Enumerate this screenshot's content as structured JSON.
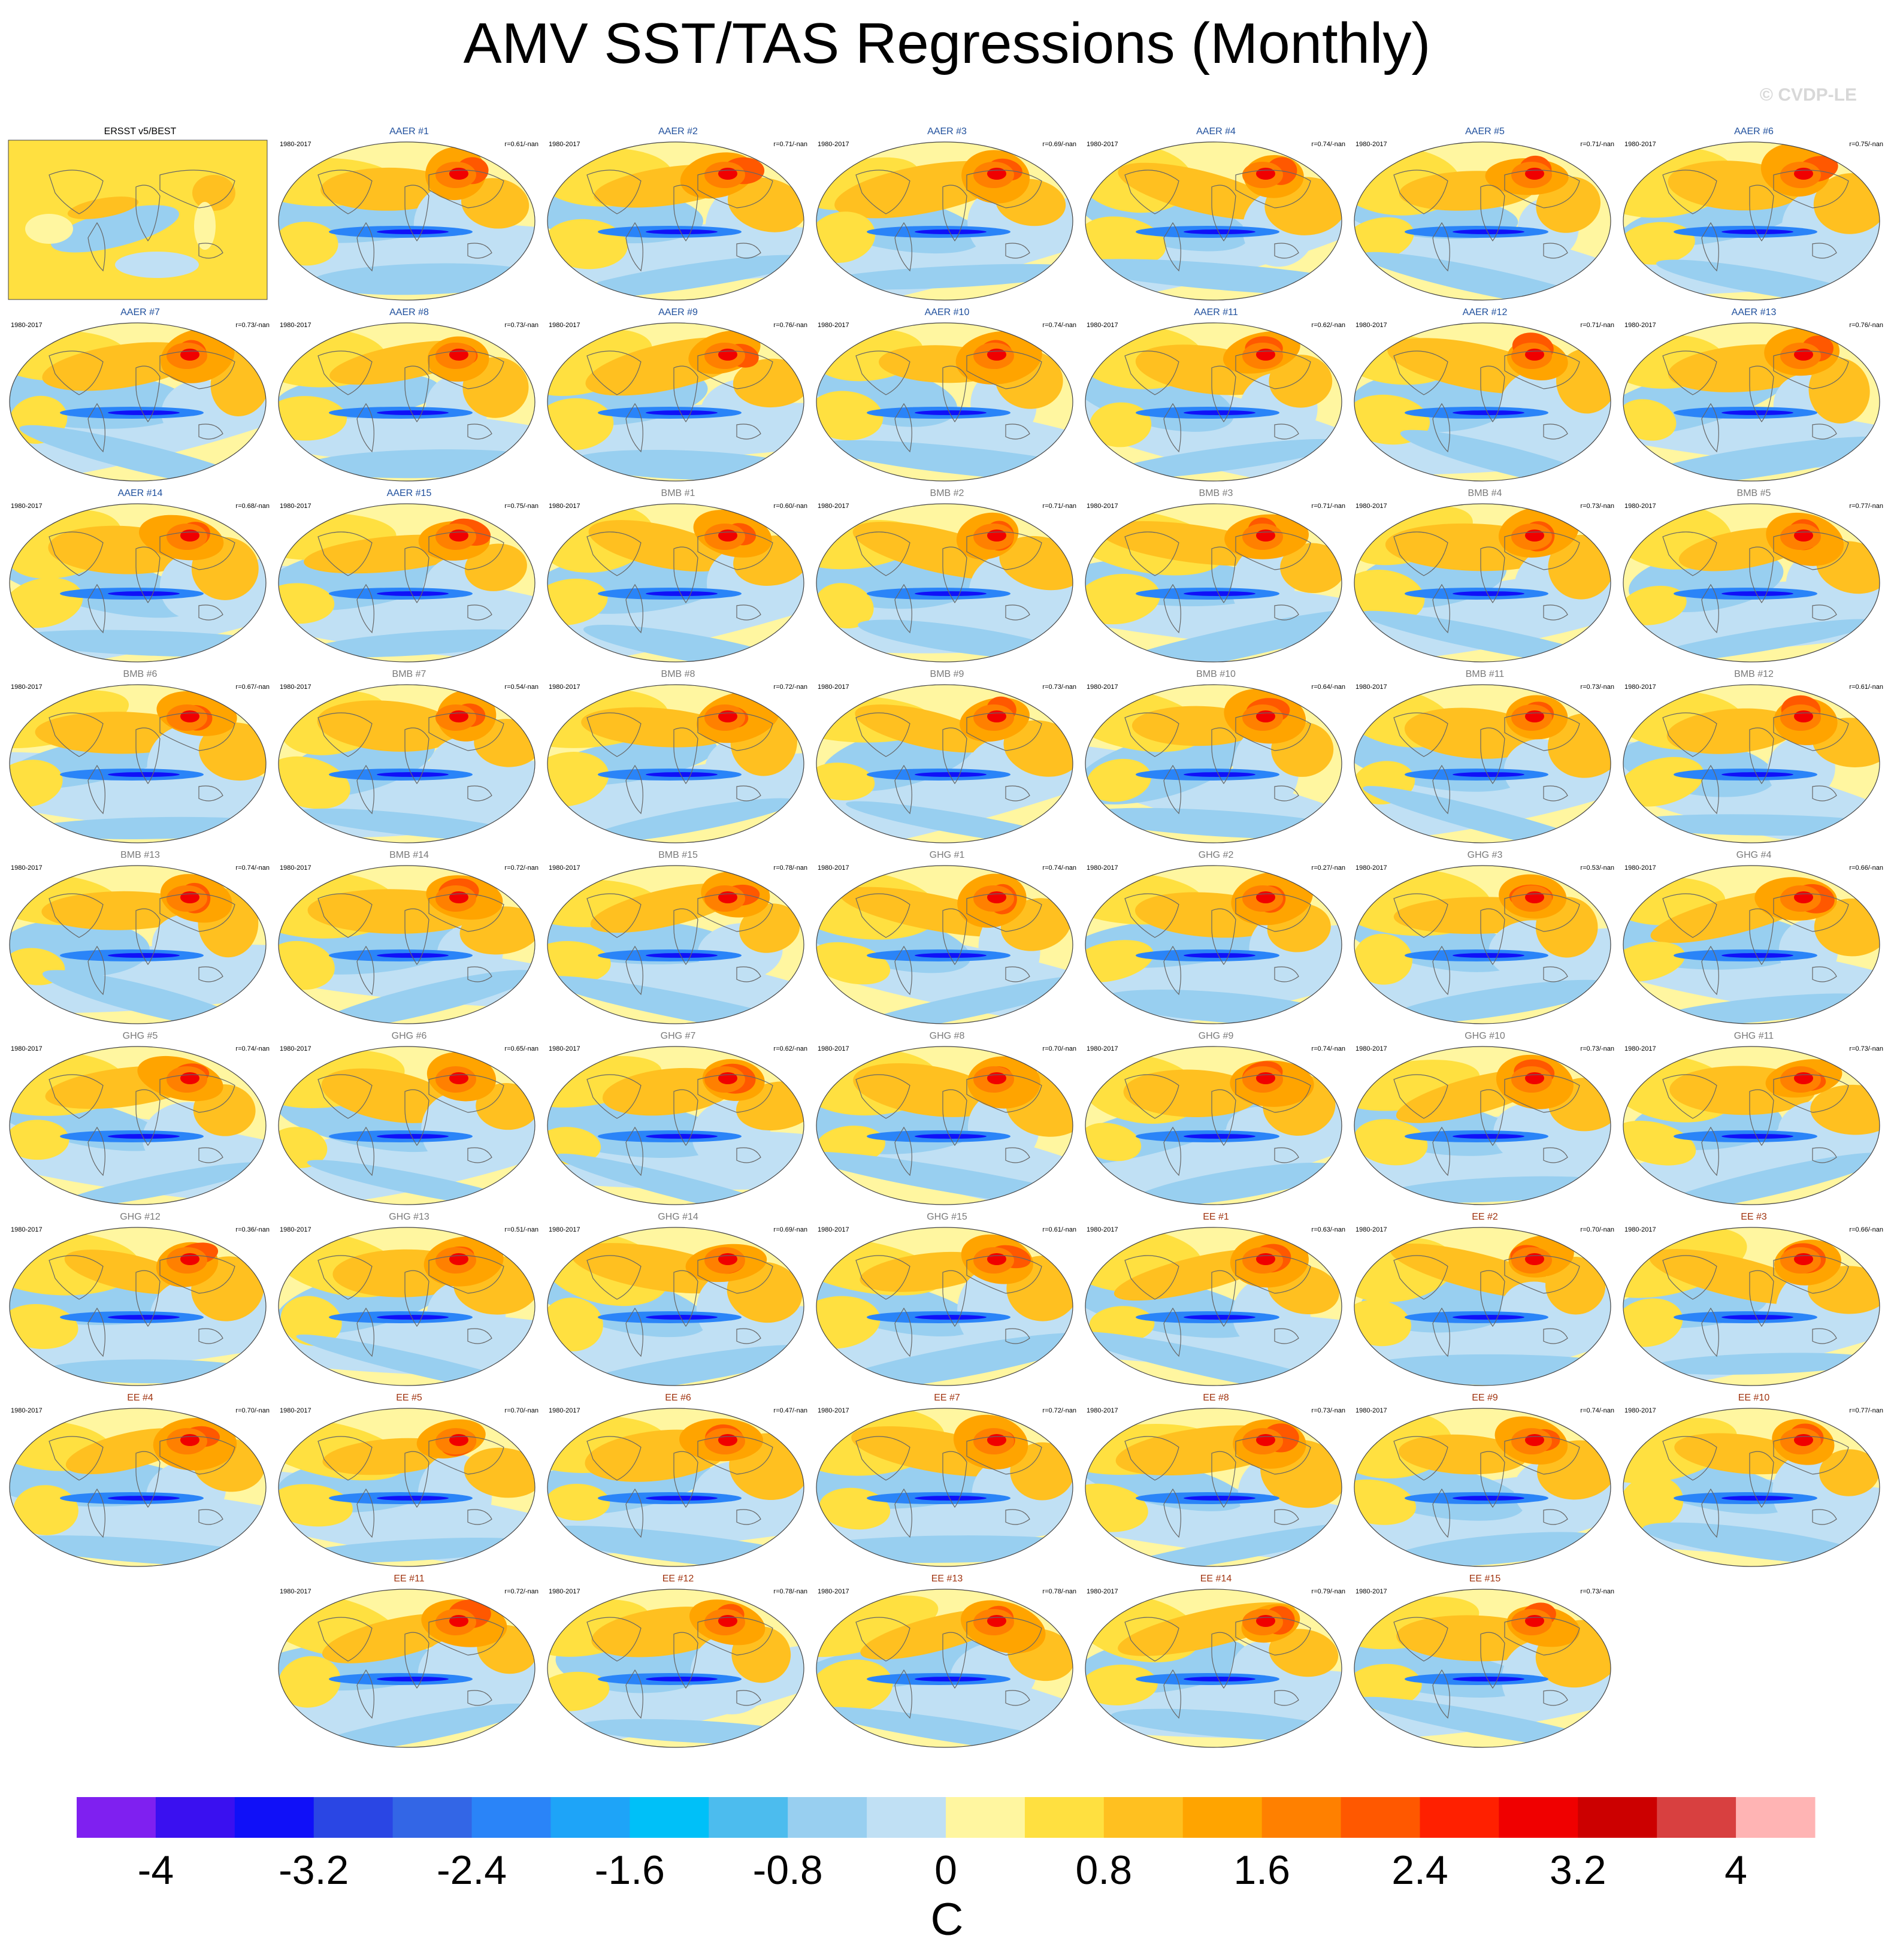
{
  "title": "AMV SST/TAS Regressions (Monthly)",
  "copyright": "© CVDP-LE",
  "panels": [
    {
      "title": "ERSST v5/BEST",
      "period": "1980-2017",
      "corr": "",
      "group": "OBS"
    },
    {
      "title": "AAER #1",
      "period": "1980-2017",
      "corr": "r=0.61/-nan",
      "group": "AAER"
    },
    {
      "title": "AAER #2",
      "period": "1980-2017",
      "corr": "r=0.71/-nan",
      "group": "AAER"
    },
    {
      "title": "AAER #3",
      "period": "1980-2017",
      "corr": "r=0.69/-nan",
      "group": "AAER"
    },
    {
      "title": "AAER #4",
      "period": "1980-2017",
      "corr": "r=0.74/-nan",
      "group": "AAER"
    },
    {
      "title": "AAER #5",
      "period": "1980-2017",
      "corr": "r=0.71/-nan",
      "group": "AAER"
    },
    {
      "title": "AAER #6",
      "period": "1980-2017",
      "corr": "r=0.75/-nan",
      "group": "AAER"
    },
    {
      "title": "AAER #7",
      "period": "1980-2017",
      "corr": "r=0.73/-nan",
      "group": "AAER"
    },
    {
      "title": "AAER #8",
      "period": "1980-2017",
      "corr": "r=0.73/-nan",
      "group": "AAER"
    },
    {
      "title": "AAER #9",
      "period": "1980-2017",
      "corr": "r=0.76/-nan",
      "group": "AAER"
    },
    {
      "title": "AAER #10",
      "period": "1980-2017",
      "corr": "r=0.74/-nan",
      "group": "AAER"
    },
    {
      "title": "AAER #11",
      "period": "1980-2017",
      "corr": "r=0.62/-nan",
      "group": "AAER"
    },
    {
      "title": "AAER #12",
      "period": "1980-2017",
      "corr": "r=0.71/-nan",
      "group": "AAER"
    },
    {
      "title": "AAER #13",
      "period": "1980-2017",
      "corr": "r=0.76/-nan",
      "group": "AAER"
    },
    {
      "title": "AAER #14",
      "period": "1980-2017",
      "corr": "r=0.68/-nan",
      "group": "AAER"
    },
    {
      "title": "AAER #15",
      "period": "1980-2017",
      "corr": "r=0.75/-nan",
      "group": "AAER"
    },
    {
      "title": "BMB #1",
      "period": "1980-2017",
      "corr": "r=0.60/-nan",
      "group": "BMB"
    },
    {
      "title": "BMB #2",
      "period": "1980-2017",
      "corr": "r=0.71/-nan",
      "group": "BMB"
    },
    {
      "title": "BMB #3",
      "period": "1980-2017",
      "corr": "r=0.71/-nan",
      "group": "BMB"
    },
    {
      "title": "BMB #4",
      "period": "1980-2017",
      "corr": "r=0.73/-nan",
      "group": "BMB"
    },
    {
      "title": "BMB #5",
      "period": "1980-2017",
      "corr": "r=0.77/-nan",
      "group": "BMB"
    },
    {
      "title": "BMB #6",
      "period": "1980-2017",
      "corr": "r=0.67/-nan",
      "group": "BMB"
    },
    {
      "title": "BMB #7",
      "period": "1980-2017",
      "corr": "r=0.54/-nan",
      "group": "BMB"
    },
    {
      "title": "BMB #8",
      "period": "1980-2017",
      "corr": "r=0.72/-nan",
      "group": "BMB"
    },
    {
      "title": "BMB #9",
      "period": "1980-2017",
      "corr": "r=0.73/-nan",
      "group": "BMB"
    },
    {
      "title": "BMB #10",
      "period": "1980-2017",
      "corr": "r=0.64/-nan",
      "group": "BMB"
    },
    {
      "title": "BMB #11",
      "period": "1980-2017",
      "corr": "r=0.73/-nan",
      "group": "BMB"
    },
    {
      "title": "BMB #12",
      "period": "1980-2017",
      "corr": "r=0.61/-nan",
      "group": "BMB"
    },
    {
      "title": "BMB #13",
      "period": "1980-2017",
      "corr": "r=0.74/-nan",
      "group": "BMB"
    },
    {
      "title": "BMB #14",
      "period": "1980-2017",
      "corr": "r=0.72/-nan",
      "group": "BMB"
    },
    {
      "title": "BMB #15",
      "period": "1980-2017",
      "corr": "r=0.78/-nan",
      "group": "BMB"
    },
    {
      "title": "GHG #1",
      "period": "1980-2017",
      "corr": "r=0.74/-nan",
      "group": "GHG"
    },
    {
      "title": "GHG #2",
      "period": "1980-2017",
      "corr": "r=0.27/-nan",
      "group": "GHG"
    },
    {
      "title": "GHG #3",
      "period": "1980-2017",
      "corr": "r=0.53/-nan",
      "group": "GHG"
    },
    {
      "title": "GHG #4",
      "period": "1980-2017",
      "corr": "r=0.66/-nan",
      "group": "GHG"
    },
    {
      "title": "GHG #5",
      "period": "1980-2017",
      "corr": "r=0.74/-nan",
      "group": "GHG"
    },
    {
      "title": "GHG #6",
      "period": "1980-2017",
      "corr": "r=0.65/-nan",
      "group": "GHG"
    },
    {
      "title": "GHG #7",
      "period": "1980-2017",
      "corr": "r=0.62/-nan",
      "group": "GHG"
    },
    {
      "title": "GHG #8",
      "period": "1980-2017",
      "corr": "r=0.70/-nan",
      "group": "GHG"
    },
    {
      "title": "GHG #9",
      "period": "1980-2017",
      "corr": "r=0.74/-nan",
      "group": "GHG"
    },
    {
      "title": "GHG #10",
      "period": "1980-2017",
      "corr": "r=0.73/-nan",
      "group": "GHG"
    },
    {
      "title": "GHG #11",
      "period": "1980-2017",
      "corr": "r=0.73/-nan",
      "group": "GHG"
    },
    {
      "title": "GHG #12",
      "period": "1980-2017",
      "corr": "r=0.36/-nan",
      "group": "GHG"
    },
    {
      "title": "GHG #13",
      "period": "1980-2017",
      "corr": "r=0.51/-nan",
      "group": "GHG"
    },
    {
      "title": "GHG #14",
      "period": "1980-2017",
      "corr": "r=0.69/-nan",
      "group": "GHG"
    },
    {
      "title": "GHG #15",
      "period": "1980-2017",
      "corr": "r=0.61/-nan",
      "group": "GHG"
    },
    {
      "title": "EE #1",
      "period": "1980-2017",
      "corr": "r=0.63/-nan",
      "group": "EE"
    },
    {
      "title": "EE #2",
      "period": "1980-2017",
      "corr": "r=0.70/-nan",
      "group": "EE"
    },
    {
      "title": "EE #3",
      "period": "1980-2017",
      "corr": "r=0.66/-nan",
      "group": "EE"
    },
    {
      "title": "EE #4",
      "period": "1980-2017",
      "corr": "r=0.70/-nan",
      "group": "EE"
    },
    {
      "title": "EE #5",
      "period": "1980-2017",
      "corr": "r=0.70/-nan",
      "group": "EE"
    },
    {
      "title": "EE #6",
      "period": "1980-2017",
      "corr": "r=0.47/-nan",
      "group": "EE"
    },
    {
      "title": "EE #7",
      "period": "1980-2017",
      "corr": "r=0.72/-nan",
      "group": "EE"
    },
    {
      "title": "EE #8",
      "period": "1980-2017",
      "corr": "r=0.73/-nan",
      "group": "EE"
    },
    {
      "title": "EE #9",
      "period": "1980-2017",
      "corr": "r=0.74/-nan",
      "group": "EE"
    },
    {
      "title": "EE #10",
      "period": "1980-2017",
      "corr": "r=0.77/-nan",
      "group": "EE"
    },
    {
      "title": "EE #11",
      "period": "1980-2017",
      "corr": "r=0.72/-nan",
      "group": "EE"
    },
    {
      "title": "EE #12",
      "period": "1980-2017",
      "corr": "r=0.78/-nan",
      "group": "EE"
    },
    {
      "title": "EE #13",
      "period": "1980-2017",
      "corr": "r=0.78/-nan",
      "group": "EE"
    },
    {
      "title": "EE #14",
      "period": "1980-2017",
      "corr": "r=0.79/-nan",
      "group": "EE"
    },
    {
      "title": "EE #15",
      "period": "1980-2017",
      "corr": "r=0.73/-nan",
      "group": "EE"
    }
  ],
  "group_title_colors": {
    "OBS": "#000000",
    "AAER": "#1f4f9c",
    "BMB": "#7a7a7a",
    "GHG": "#7a7a7a",
    "EE": "#a0330f"
  },
  "colorbar": {
    "colors": [
      "#7f20f0",
      "#3a10f0",
      "#1010f8",
      "#2a46e4",
      "#3366e6",
      "#2a84f8",
      "#1ea4f8",
      "#00c0f8",
      "#4cbcee",
      "#98cff0",
      "#c0e0f4",
      "#fff6a0",
      "#ffe040",
      "#ffc020",
      "#ffa400",
      "#ff8000",
      "#ff5800",
      "#ff2000",
      "#f00000",
      "#cc0000",
      "#d84040",
      "#ffb4b4"
    ],
    "tick_labels": [
      "-4",
      "-3.2",
      "-2.4",
      "-1.6",
      "-0.8",
      "0",
      "0.8",
      "1.6",
      "2.4",
      "3.2",
      "4"
    ],
    "units": "C"
  }
}
